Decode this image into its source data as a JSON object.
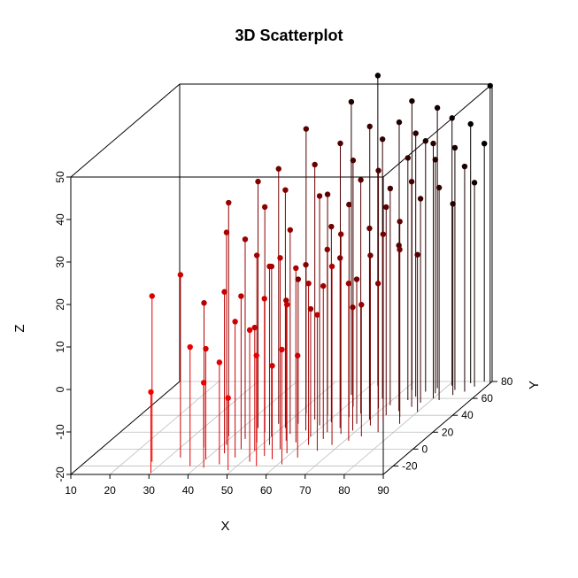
{
  "chart_data": {
    "type": "scatter",
    "title": "3D Scatterplot",
    "xlabel": "X",
    "ylabel": "Y",
    "zlabel": "Z",
    "xlim": [
      10,
      90
    ],
    "ylim": [
      -30,
      80
    ],
    "zlim": [
      -20,
      50
    ],
    "x_ticks": [
      10,
      20,
      30,
      40,
      50,
      60,
      70,
      80,
      90
    ],
    "y_ticks": [
      -20,
      0,
      20,
      40,
      60,
      80
    ],
    "z_ticks": [
      -20,
      -10,
      0,
      10,
      20,
      30,
      40,
      50
    ],
    "x_tick_labels": [
      "10",
      "20",
      "30",
      "40",
      "50",
      "60",
      "70",
      "80",
      "90"
    ],
    "y_tick_labels": [
      "-20",
      "0",
      "20",
      "40",
      "60",
      "80"
    ],
    "z_tick_labels": [
      "-20",
      "-10",
      "0",
      "10",
      "20",
      "30",
      "40",
      "50"
    ],
    "grid": true,
    "drop_lines": true,
    "point_color_high": "#ff0000",
    "point_color_low": "#000000",
    "box_color": "#000000",
    "grid_color": "#bdbdbd",
    "points": [
      {
        "x": 27,
        "y": -15,
        "z": 19
      },
      {
        "x": 30,
        "y": -28,
        "z": -1
      },
      {
        "x": 33,
        "y": -10,
        "z": 23
      },
      {
        "x": 36,
        "y": 2,
        "z": 14
      },
      {
        "x": 38,
        "y": -20,
        "z": 8
      },
      {
        "x": 40,
        "y": -12,
        "z": 6
      },
      {
        "x": 41,
        "y": 5,
        "z": 30
      },
      {
        "x": 42,
        "y": -22,
        "z": 0
      },
      {
        "x": 43,
        "y": -5,
        "z": 18
      },
      {
        "x": 44,
        "y": 12,
        "z": 27
      },
      {
        "x": 45,
        "y": -18,
        "z": 4
      },
      {
        "x": 46,
        "y": 0,
        "z": 16
      },
      {
        "x": 47,
        "y": 20,
        "z": 33
      },
      {
        "x": 47,
        "y": -10,
        "z": 12
      },
      {
        "x": 48,
        "y": 8,
        "z": 24
      },
      {
        "x": 49,
        "y": -25,
        "z": -3
      },
      {
        "x": 50,
        "y": 15,
        "z": 20
      },
      {
        "x": 50,
        "y": -2,
        "z": 9
      },
      {
        "x": 51,
        "y": 25,
        "z": 36
      },
      {
        "x": 52,
        "y": -15,
        "z": 11
      },
      {
        "x": 52,
        "y": 5,
        "z": 22
      },
      {
        "x": 53,
        "y": 30,
        "z": 14
      },
      {
        "x": 54,
        "y": -8,
        "z": 17
      },
      {
        "x": 54,
        "y": 18,
        "z": 28
      },
      {
        "x": 55,
        "y": -20,
        "z": 6
      },
      {
        "x": 55,
        "y": 10,
        "z": 13
      },
      {
        "x": 56,
        "y": 35,
        "z": 40
      },
      {
        "x": 56,
        "y": 0,
        "z": 25
      },
      {
        "x": 57,
        "y": 22,
        "z": 19
      },
      {
        "x": 57,
        "y": -12,
        "z": 2
      },
      {
        "x": 58,
        "y": 40,
        "z": 32
      },
      {
        "x": 58,
        "y": 8,
        "z": 21
      },
      {
        "x": 59,
        "y": -5,
        "z": 15
      },
      {
        "x": 59,
        "y": 28,
        "z": 34
      },
      {
        "x": 60,
        "y": 15,
        "z": 10
      },
      {
        "x": 60,
        "y": 45,
        "z": 43
      },
      {
        "x": 61,
        "y": -18,
        "z": 7
      },
      {
        "x": 61,
        "y": 32,
        "z": 26
      },
      {
        "x": 62,
        "y": 5,
        "z": 18
      },
      {
        "x": 62,
        "y": 50,
        "z": 38
      },
      {
        "x": 63,
        "y": 20,
        "z": 23
      },
      {
        "x": 63,
        "y": -10,
        "z": 4
      },
      {
        "x": 64,
        "y": 38,
        "z": 30
      },
      {
        "x": 64,
        "y": 12,
        "z": 16
      },
      {
        "x": 65,
        "y": 55,
        "z": 45
      },
      {
        "x": 65,
        "y": 25,
        "z": 20
      },
      {
        "x": 66,
        "y": -2,
        "z": 12
      },
      {
        "x": 66,
        "y": 42,
        "z": 35
      },
      {
        "x": 67,
        "y": 18,
        "z": 27
      },
      {
        "x": 67,
        "y": 60,
        "z": 41
      },
      {
        "x": 68,
        "y": 30,
        "z": 14
      },
      {
        "x": 68,
        "y": 5,
        "z": 22
      },
      {
        "x": 69,
        "y": 48,
        "z": 36
      },
      {
        "x": 69,
        "y": 22,
        "z": 9
      },
      {
        "x": 70,
        "y": 65,
        "z": 44
      },
      {
        "x": 70,
        "y": 35,
        "z": 25
      },
      {
        "x": 71,
        "y": 10,
        "z": 17
      },
      {
        "x": 71,
        "y": 52,
        "z": 31
      },
      {
        "x": 72,
        "y": 28,
        "z": 20
      },
      {
        "x": 72,
        "y": 70,
        "z": 48
      },
      {
        "x": 73,
        "y": 40,
        "z": 29
      },
      {
        "x": 73,
        "y": 15,
        "z": 11
      },
      {
        "x": 74,
        "y": 58,
        "z": 37
      },
      {
        "x": 74,
        "y": 33,
        "z": 24
      },
      {
        "x": 75,
        "y": 62,
        "z": 42
      },
      {
        "x": 75,
        "y": 45,
        "z": 19
      },
      {
        "x": 76,
        "y": 20,
        "z": 15
      },
      {
        "x": 76,
        "y": 68,
        "z": 39
      },
      {
        "x": 77,
        "y": 50,
        "z": 33
      },
      {
        "x": 77,
        "y": 38,
        "z": 26
      },
      {
        "x": 78,
        "y": 72,
        "z": 46
      },
      {
        "x": 78,
        "y": 55,
        "z": 28
      },
      {
        "x": 79,
        "y": 30,
        "z": 21
      },
      {
        "x": 79,
        "y": 66,
        "z": 35
      },
      {
        "x": 80,
        "y": 60,
        "z": 40
      },
      {
        "x": 80,
        "y": 44,
        "z": 17
      },
      {
        "x": 81,
        "y": 75,
        "z": 43
      },
      {
        "x": 82,
        "y": 58,
        "z": 30
      },
      {
        "x": 83,
        "y": 70,
        "z": 37
      },
      {
        "x": 84,
        "y": 64,
        "z": 25
      },
      {
        "x": 85,
        "y": 78,
        "z": 41
      },
      {
        "x": 86,
        "y": 68,
        "z": 33
      },
      {
        "x": 87,
        "y": 74,
        "z": 28
      },
      {
        "x": 88,
        "y": 80,
        "z": 36
      },
      {
        "x": 90,
        "y": 78,
        "z": 50
      },
      {
        "x": 62,
        "y": 75,
        "z": 53
      },
      {
        "x": 58,
        "y": 64,
        "z": 49
      },
      {
        "x": 52,
        "y": 42,
        "z": 47
      },
      {
        "x": 48,
        "y": 30,
        "z": 40
      },
      {
        "x": 44,
        "y": 25,
        "z": 38
      },
      {
        "x": 39,
        "y": 15,
        "z": 35
      }
    ]
  }
}
